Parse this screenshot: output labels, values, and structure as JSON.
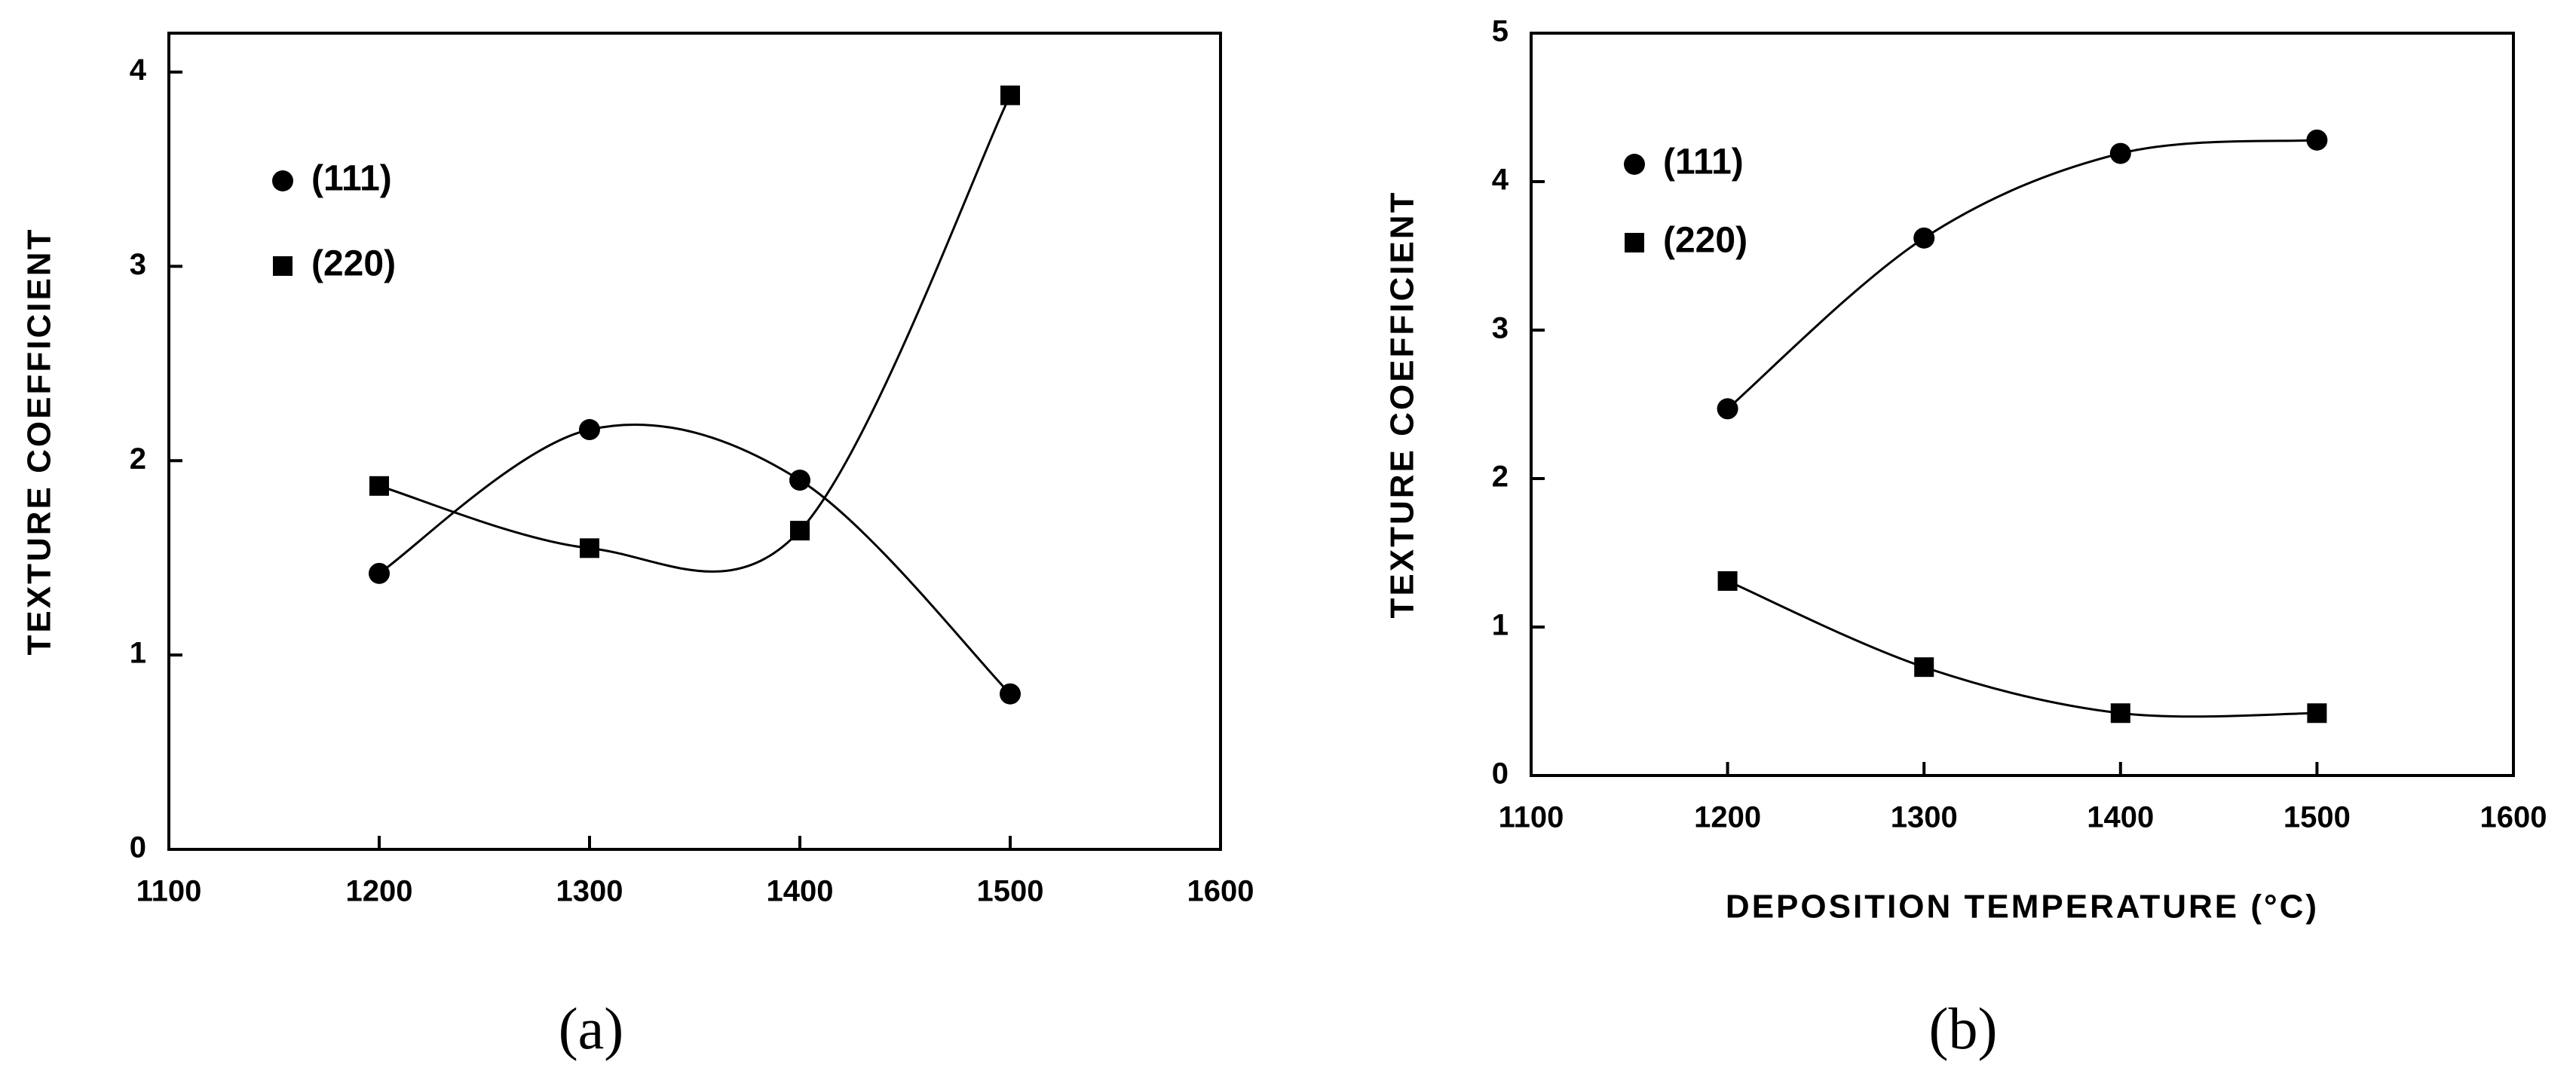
{
  "chart_data": [
    {
      "type": "line",
      "caption": "(a)",
      "y_label": "TEXTURE COEFFICIENT",
      "x": [
        1200,
        1300,
        1400,
        1500
      ],
      "series": [
        {
          "name": "(111)",
          "color": "#000000",
          "marker": "circle",
          "values": [
            1.42,
            2.16,
            1.9,
            0.8
          ]
        },
        {
          "name": "(220)",
          "color": "#000000",
          "marker": "square",
          "values": [
            1.87,
            1.55,
            1.64,
            3.88
          ]
        }
      ],
      "xlim": [
        1100,
        1600
      ],
      "xticks": [
        1100,
        1200,
        1300,
        1400,
        1500,
        1600
      ],
      "ylim": [
        0,
        4.2
      ],
      "yticks": [
        0,
        1,
        2,
        3,
        4
      ]
    },
    {
      "type": "line",
      "caption": "(b)",
      "y_label": "TEXTURE COEFFICIENT",
      "x_label": "DEPOSITION TEMPERATURE (°C)",
      "x": [
        1200,
        1300,
        1400,
        1500
      ],
      "series": [
        {
          "name": "(111)",
          "color": "#000000",
          "marker": "circle",
          "values": [
            2.47,
            3.62,
            4.19,
            4.28
          ]
        },
        {
          "name": "(220)",
          "color": "#000000",
          "marker": "square",
          "values": [
            1.31,
            0.73,
            0.42,
            0.42
          ]
        }
      ],
      "xlim": [
        1100,
        1600
      ],
      "xticks": [
        1100,
        1200,
        1300,
        1400,
        1500,
        1600
      ],
      "ylim": [
        0,
        5
      ],
      "yticks": [
        0,
        1,
        2,
        3,
        4,
        5
      ]
    }
  ]
}
